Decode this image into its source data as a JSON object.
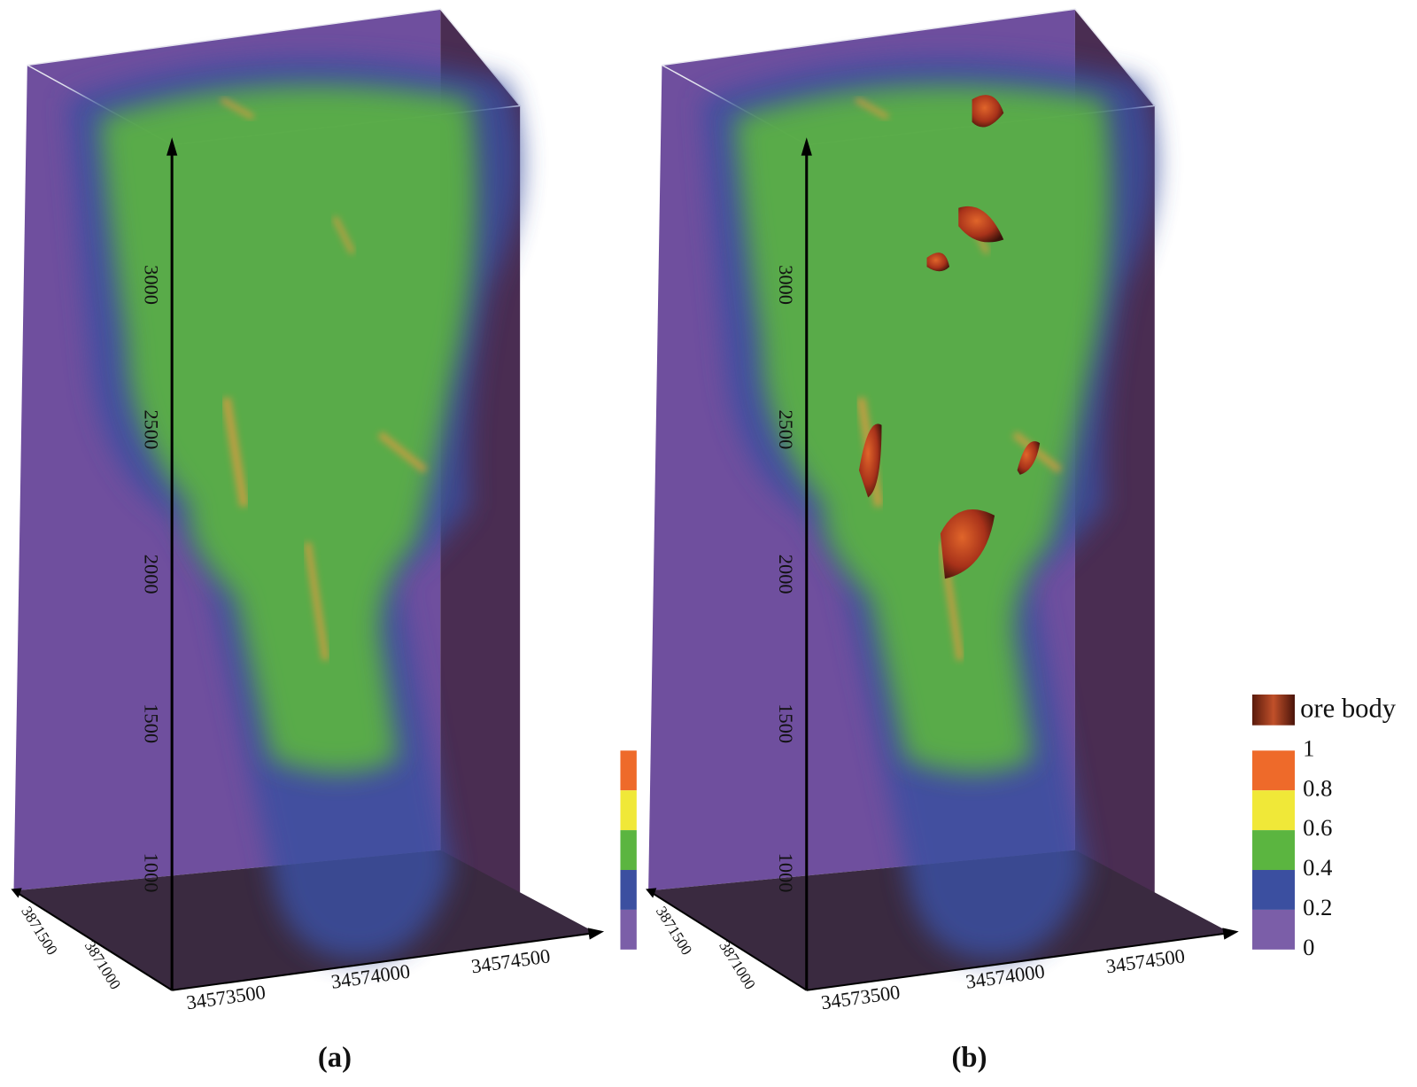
{
  "panels": [
    {
      "label": "(a)",
      "z_ticks": [
        "3000",
        "2500",
        "2000",
        "1500",
        "1000"
      ],
      "x_ticks": [
        "34573500",
        "34574000",
        "34574500"
      ],
      "y_ticks": [
        "3871500",
        "3871000"
      ],
      "ore_body": false,
      "legend_ticks": false
    },
    {
      "label": "(b)",
      "z_ticks": [
        "3000",
        "2500",
        "2000",
        "1500",
        "1000"
      ],
      "x_ticks": [
        "34573500",
        "34574000",
        "34574500"
      ],
      "y_ticks": [
        "3871500",
        "3871000"
      ],
      "ore_body": true,
      "legend_ticks": true
    }
  ],
  "legend": {
    "ore_body_label": "ore body",
    "ticks": [
      "1",
      "0.8",
      "0.6",
      "0.4",
      "0.2",
      "0"
    ],
    "colors": [
      "#ee6a2a",
      "#f0e838",
      "#5bb540",
      "#3b4fa0",
      "#7b5ea8"
    ]
  }
}
